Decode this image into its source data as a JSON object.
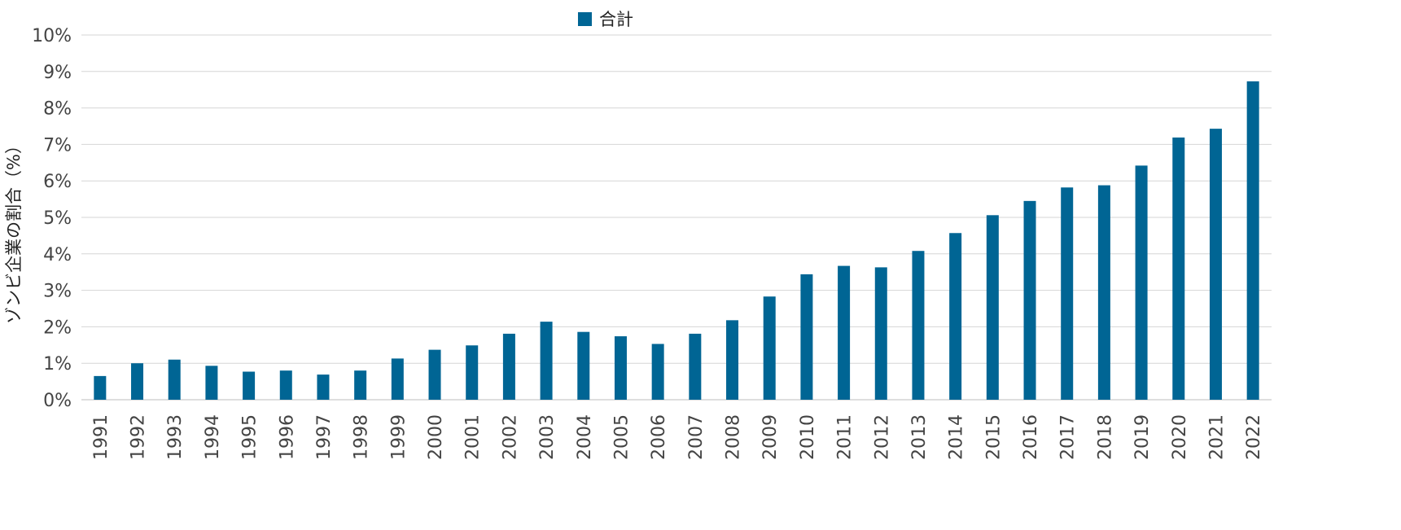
{
  "chart_data": {
    "type": "bar",
    "title": "",
    "xlabel": "",
    "ylabel": "ゾンビ企業の割合（%）",
    "legend": {
      "position": "top-center",
      "entries": [
        "合計"
      ]
    },
    "color": "#006594",
    "grid": true,
    "ylim": [
      0,
      10
    ],
    "yticks": [
      "0%",
      "1%",
      "2%",
      "3%",
      "4%",
      "5%",
      "6%",
      "7%",
      "8%",
      "9%",
      "10%"
    ],
    "categories": [
      "1991",
      "1992",
      "1993",
      "1994",
      "1995",
      "1996",
      "1997",
      "1998",
      "1999",
      "2000",
      "2001",
      "2002",
      "2003",
      "2004",
      "2005",
      "2006",
      "2007",
      "2008",
      "2009",
      "2010",
      "2011",
      "2012",
      "2013",
      "2014",
      "2015",
      "2016",
      "2017",
      "2018",
      "2019",
      "2020",
      "2021",
      "2022"
    ],
    "series": [
      {
        "name": "合計",
        "values": [
          0.65,
          1.0,
          1.1,
          0.93,
          0.77,
          0.8,
          0.69,
          0.8,
          1.13,
          1.37,
          1.49,
          1.81,
          2.14,
          1.86,
          1.74,
          1.53,
          1.81,
          2.18,
          2.83,
          3.44,
          3.67,
          3.63,
          4.08,
          4.57,
          5.06,
          5.45,
          5.82,
          5.88,
          6.42,
          7.19,
          7.43,
          8.73
        ]
      }
    ]
  }
}
